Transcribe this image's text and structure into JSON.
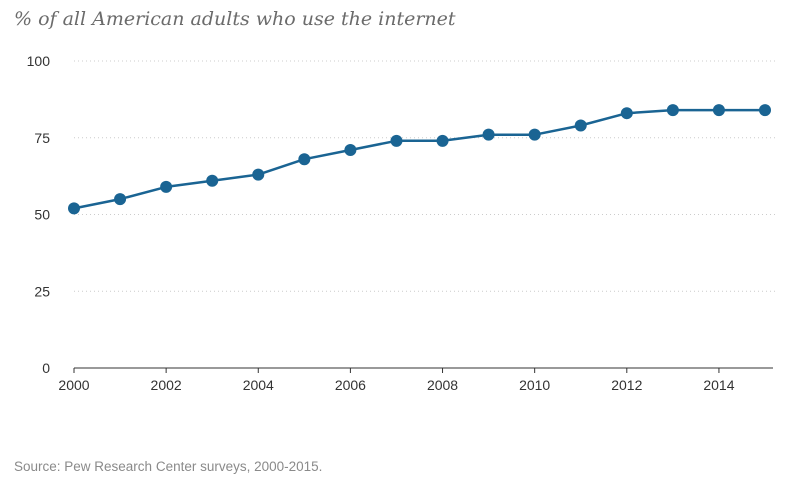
{
  "chart_data": {
    "type": "line",
    "title": "% of all American adults who use the internet",
    "source": "Source: Pew Research Center surveys, 2000-2015.",
    "xlabel": "",
    "ylabel": "",
    "x": [
      2000,
      2001,
      2002,
      2003,
      2004,
      2005,
      2006,
      2007,
      2008,
      2009,
      2010,
      2011,
      2012,
      2013,
      2014,
      2015
    ],
    "series": [
      {
        "name": "% of all American adults who use the internet",
        "values": [
          52,
          55,
          59,
          61,
          63,
          68,
          71,
          74,
          74,
          76,
          76,
          79,
          83,
          84,
          84,
          84
        ]
      }
    ],
    "ylim": [
      0,
      100
    ],
    "xlim": [
      2000,
      2015
    ],
    "yticks": [
      0,
      25,
      50,
      75,
      100
    ],
    "xticks": [
      2000,
      2002,
      2004,
      2006,
      2008,
      2010,
      2012,
      2014
    ],
    "grid": "horizontal-dotted",
    "legend": "none",
    "colors": {
      "line": "#1a6493",
      "grid": "#cccccc",
      "axis": "#333333"
    }
  }
}
